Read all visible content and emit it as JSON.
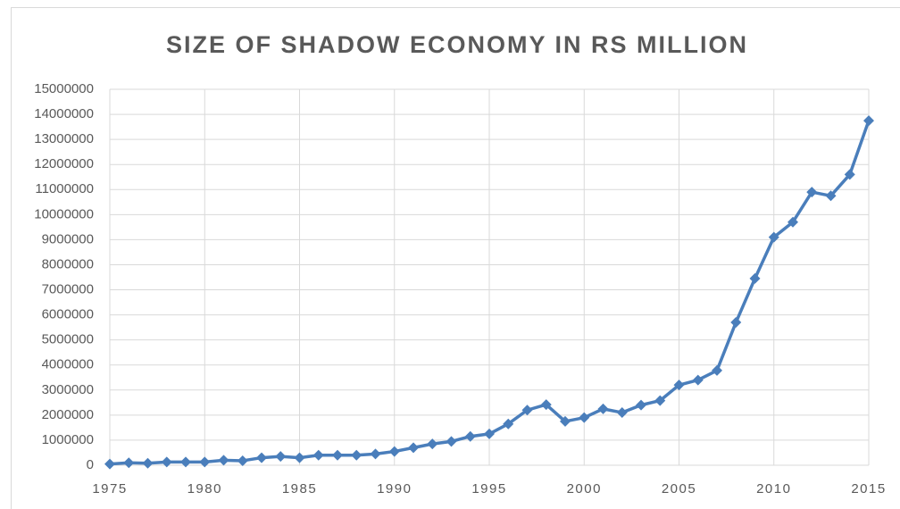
{
  "chart_data": {
    "type": "line",
    "title": "SIZE OF SHADOW ECONOMY IN RS MILLION",
    "x": [
      1975,
      1976,
      1977,
      1978,
      1979,
      1980,
      1981,
      1982,
      1983,
      1984,
      1985,
      1986,
      1987,
      1988,
      1989,
      1990,
      1991,
      1992,
      1993,
      1994,
      1995,
      1996,
      1997,
      1998,
      1999,
      2000,
      2001,
      2002,
      2003,
      2004,
      2005,
      2006,
      2007,
      2008,
      2009,
      2010,
      2011,
      2012,
      2013,
      2014,
      2015
    ],
    "values": [
      50000,
      100000,
      80000,
      130000,
      130000,
      130000,
      200000,
      180000,
      300000,
      350000,
      300000,
      400000,
      400000,
      400000,
      450000,
      550000,
      700000,
      850000,
      950000,
      1150000,
      1250000,
      1650000,
      2200000,
      2420000,
      1750000,
      1900000,
      2250000,
      2100000,
      2400000,
      2580000,
      3200000,
      3400000,
      3780000,
      5700000,
      7450000,
      9100000,
      9700000,
      10900000,
      10750000,
      11600000,
      13750000
    ],
    "color": "#4a7ebb",
    "xlim": [
      1975,
      2015
    ],
    "xticks": [
      1975,
      1980,
      1985,
      1990,
      1995,
      2000,
      2005,
      2010,
      2015
    ],
    "ylim": [
      0,
      15000000
    ],
    "yticks": [
      0,
      1000000,
      2000000,
      3000000,
      4000000,
      5000000,
      6000000,
      7000000,
      8000000,
      9000000,
      10000000,
      11000000,
      12000000,
      13000000,
      14000000,
      15000000
    ],
    "grid": true
  }
}
